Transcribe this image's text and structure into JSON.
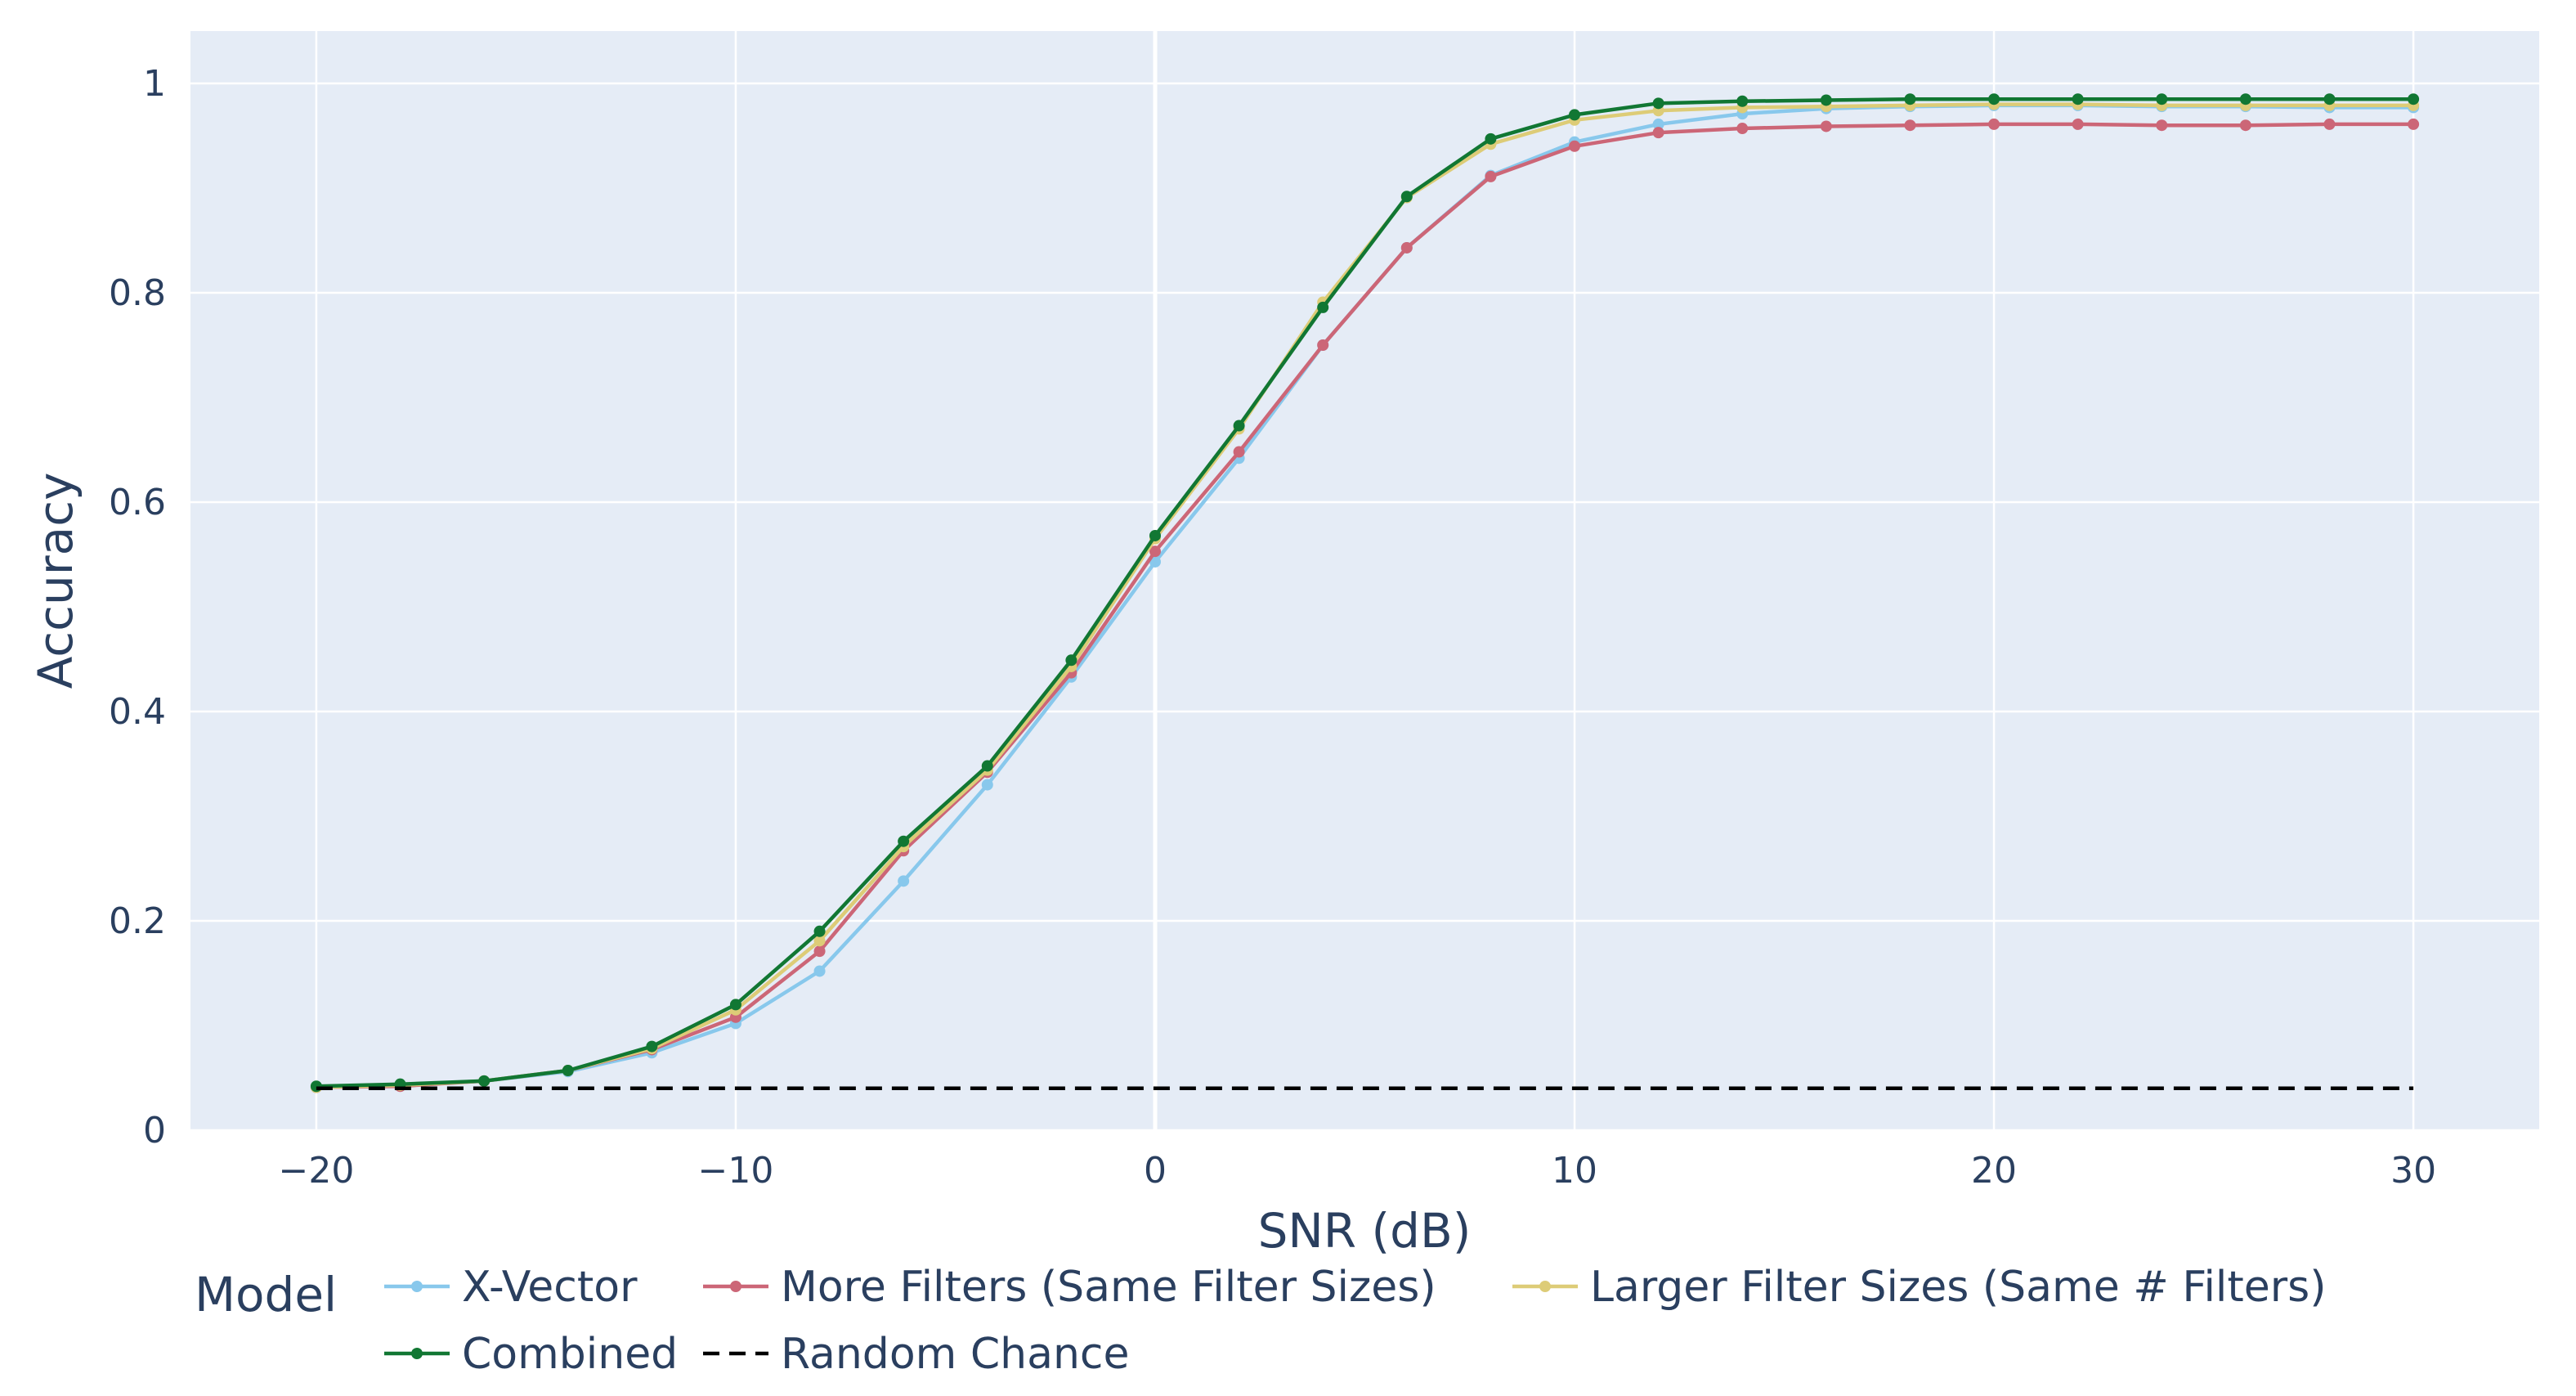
{
  "chart_data": {
    "type": "line",
    "title": "",
    "xlabel": "SNR (dB)",
    "ylabel": "Accuracy",
    "xlim": [
      -23,
      33
    ],
    "ylim": [
      0,
      1.05
    ],
    "xticks": [
      -20,
      -10,
      0,
      10,
      20,
      30
    ],
    "xtick_labels": [
      "−20",
      "−10",
      "0",
      "10",
      "20",
      "30"
    ],
    "yticks": [
      0,
      0.2,
      0.4,
      0.6,
      0.8,
      1
    ],
    "ytick_labels": [
      "0",
      "0.2",
      "0.4",
      "0.6",
      "0.8",
      "1"
    ],
    "grid": true,
    "legend_title": "Model",
    "legend_position": "bottom",
    "x": [
      -20,
      -18,
      -16,
      -14,
      -12,
      -10,
      -8,
      -6,
      -4,
      -2,
      0,
      2,
      4,
      6,
      8,
      10,
      12,
      14,
      16,
      18,
      20,
      22,
      24,
      26,
      28,
      30
    ],
    "series": [
      {
        "name": "X-Vector",
        "color": "#88c8ec",
        "dash": "solid",
        "markers": true,
        "values": [
          0.041,
          0.043,
          0.047,
          0.056,
          0.074,
          0.102,
          0.152,
          0.238,
          0.33,
          0.433,
          0.543,
          0.642,
          0.75,
          0.843,
          0.912,
          0.944,
          0.961,
          0.971,
          0.976,
          0.978,
          0.979,
          0.979,
          0.978,
          0.978,
          0.977,
          0.977
        ]
      },
      {
        "name": "More Filters (Same Filter Sizes)",
        "color": "#cc6677",
        "dash": "solid",
        "markers": true,
        "values": [
          0.041,
          0.042,
          0.047,
          0.057,
          0.077,
          0.108,
          0.171,
          0.267,
          0.342,
          0.437,
          0.553,
          0.648,
          0.75,
          0.843,
          0.911,
          0.94,
          0.953,
          0.957,
          0.959,
          0.96,
          0.961,
          0.961,
          0.96,
          0.96,
          0.961,
          0.961
        ]
      },
      {
        "name": "Larger Filter Sizes (Same # Filters)",
        "color": "#ddcc77",
        "dash": "solid",
        "markers": true,
        "values": [
          0.041,
          0.043,
          0.047,
          0.057,
          0.078,
          0.115,
          0.181,
          0.271,
          0.344,
          0.443,
          0.565,
          0.67,
          0.791,
          0.891,
          0.942,
          0.965,
          0.974,
          0.977,
          0.978,
          0.979,
          0.98,
          0.98,
          0.979,
          0.979,
          0.979,
          0.979
        ]
      },
      {
        "name": "Combined",
        "color": "#117733",
        "dash": "solid",
        "markers": true,
        "values": [
          0.042,
          0.044,
          0.047,
          0.057,
          0.08,
          0.12,
          0.19,
          0.276,
          0.348,
          0.449,
          0.568,
          0.673,
          0.786,
          0.892,
          0.947,
          0.97,
          0.981,
          0.983,
          0.984,
          0.985,
          0.985,
          0.985,
          0.985,
          0.985,
          0.985,
          0.985
        ]
      },
      {
        "name": "Random Chance",
        "color": "#000000",
        "dash": "dash",
        "markers": false,
        "values": [
          0.04,
          0.04,
          0.04,
          0.04,
          0.04,
          0.04,
          0.04,
          0.04,
          0.04,
          0.04,
          0.04,
          0.04,
          0.04,
          0.04,
          0.04,
          0.04,
          0.04,
          0.04,
          0.04,
          0.04,
          0.04,
          0.04,
          0.04,
          0.04,
          0.04,
          0.04
        ]
      }
    ]
  }
}
